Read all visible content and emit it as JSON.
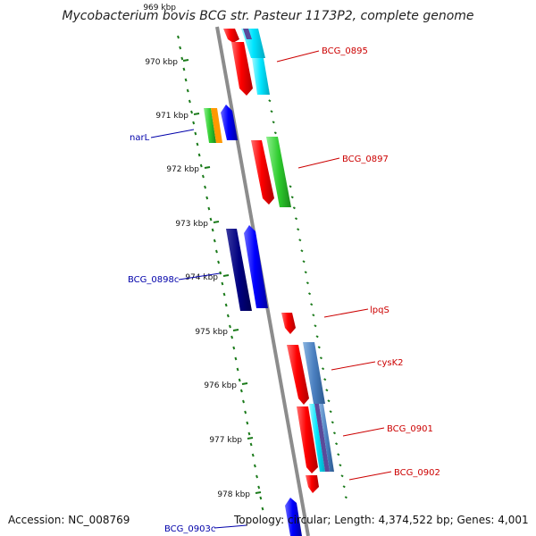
{
  "title": "Mycobacterium bovis BCG str. Pasteur 1173P2, complete genome",
  "scale_marks": [
    {
      "label": "969 kbp",
      "faded": true
    },
    {
      "label": "970 kbp"
    },
    {
      "label": "971 kbp"
    },
    {
      "label": "972 kbp"
    },
    {
      "label": "973 kbp"
    },
    {
      "label": "974 kbp"
    },
    {
      "label": "975 kbp"
    },
    {
      "label": "976 kbp"
    },
    {
      "label": "977 kbp"
    },
    {
      "label": "978 kbp"
    }
  ],
  "gene_labels": [
    {
      "name": "BCG_0895",
      "color": "#cc0000"
    },
    {
      "name": "narL",
      "color": "#0000aa"
    },
    {
      "name": "BCG_0897",
      "color": "#cc0000"
    },
    {
      "name": "BCG_0898c",
      "color": "#0000aa"
    },
    {
      "name": "lpqS",
      "color": "#cc0000"
    },
    {
      "name": "cysK2",
      "color": "#cc0000"
    },
    {
      "name": "BCG_0901",
      "color": "#cc0000"
    },
    {
      "name": "BCG_0902",
      "color": "#cc0000"
    },
    {
      "name": "BCG_0903c",
      "color": "#0000aa"
    }
  ],
  "colors": {
    "backbone": "#8c8c8c",
    "tick": "#1a7a1a",
    "forward": "#ee0000",
    "reverse": "#0000ee",
    "reverse_dark": "#00007a",
    "cyan": "#00e0ee",
    "green": "#33cc33",
    "orange": "#ff9900",
    "steelblue": "#4a86c8",
    "purple": "#5a4a9a"
  },
  "footer": {
    "accession": "Accession: NC_008769",
    "summary": "Topology: circular; Length: 4,374,522 bp; Genes: 4,001"
  }
}
